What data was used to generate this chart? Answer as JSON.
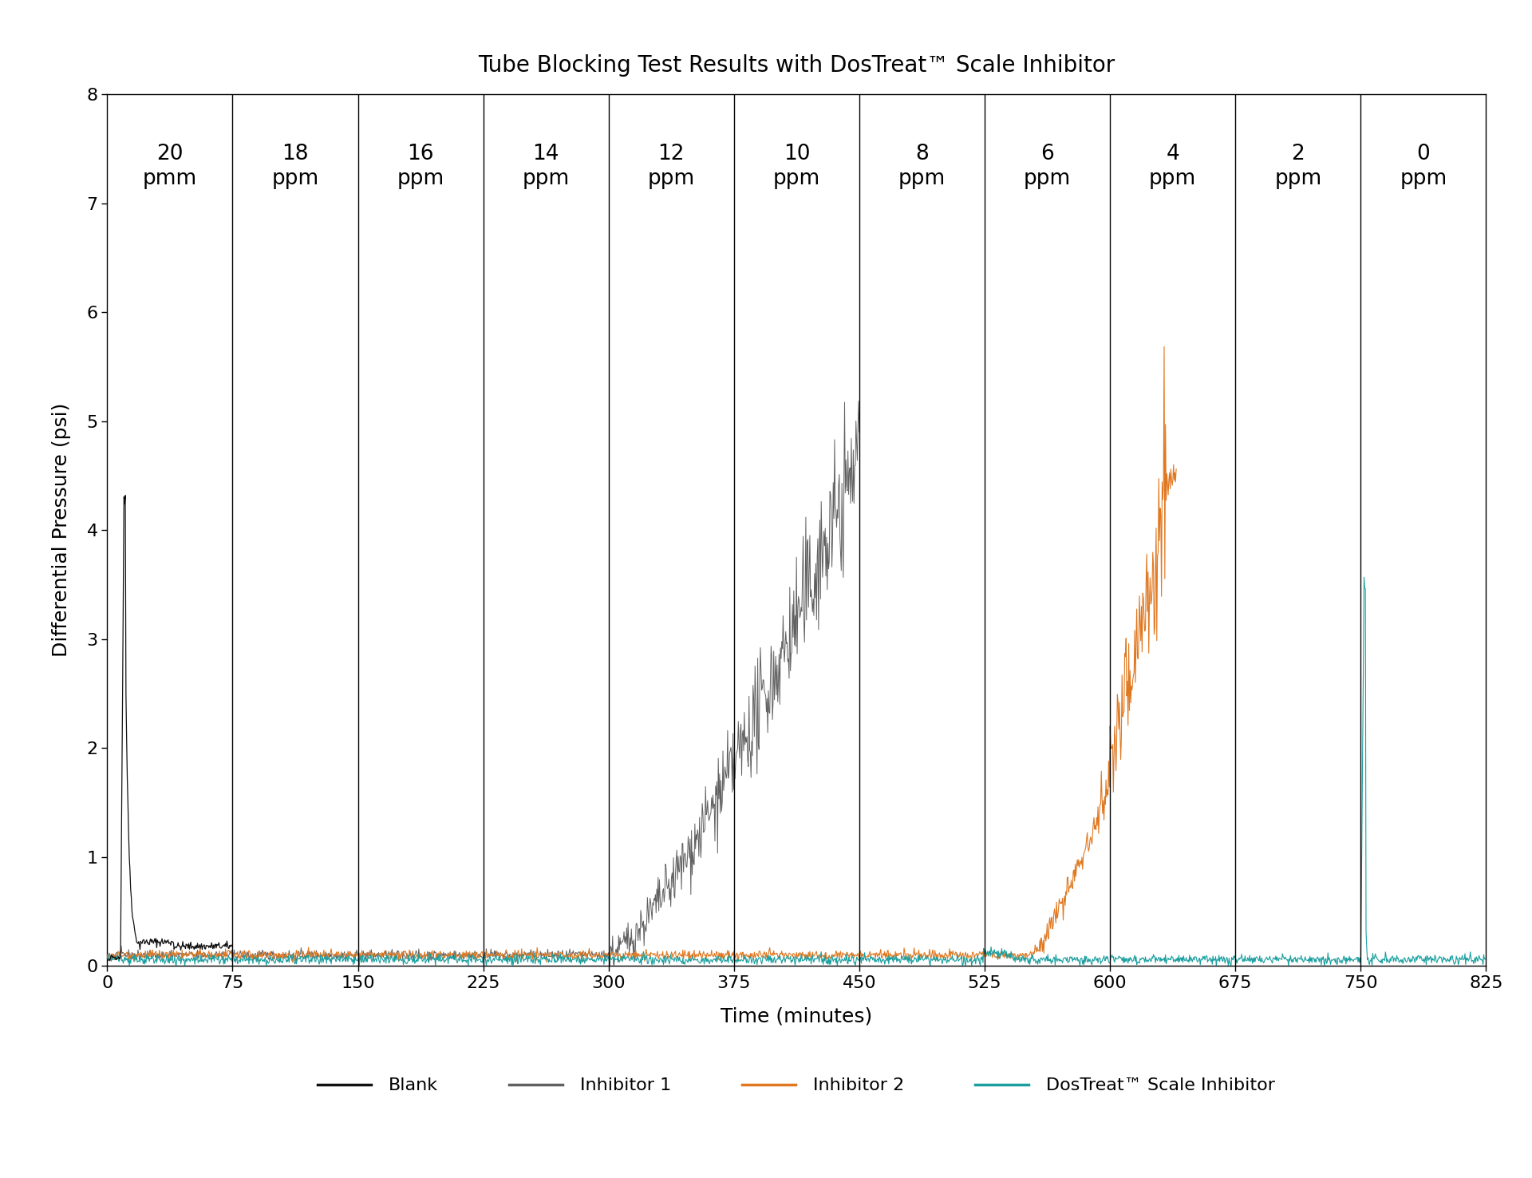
{
  "title": "Tube Blocking Test Results with DosTreat™ Scale Inhibitor",
  "xlabel": "Time (minutes)",
  "ylabel": "Differential Pressure (psi)",
  "xlim": [
    0,
    825
  ],
  "ylim": [
    0,
    8
  ],
  "xticks": [
    0,
    75,
    150,
    225,
    300,
    375,
    450,
    525,
    600,
    675,
    750,
    825
  ],
  "yticks": [
    0,
    1,
    2,
    3,
    4,
    5,
    6,
    7,
    8
  ],
  "background_color": "#ffffff",
  "vlines": [
    75,
    150,
    225,
    300,
    375,
    450,
    525,
    600,
    675,
    750
  ],
  "ppm_labels": [
    {
      "text": "20\npmm",
      "x": 37.5
    },
    {
      "text": "18\nppm",
      "x": 112.5
    },
    {
      "text": "16\nppm",
      "x": 187.5
    },
    {
      "text": "14\nppm",
      "x": 262.5
    },
    {
      "text": "12\nppm",
      "x": 337.5
    },
    {
      "text": "10\nppm",
      "x": 412.5
    },
    {
      "text": "8\nppm",
      "x": 487.5
    },
    {
      "text": "6\nppm",
      "x": 562.5
    },
    {
      "text": "4\nppm",
      "x": 637.5
    },
    {
      "text": "2\nppm",
      "x": 712.5
    },
    {
      "text": "0\nppm",
      "x": 787.5
    }
  ],
  "colors": {
    "blank": "#111111",
    "inhibitor1": "#606060",
    "inhibitor2": "#e07820",
    "dostreat": "#1a9fa0"
  },
  "legend_labels": [
    "Blank",
    "Inhibitor 1",
    "Inhibitor 2",
    "DosTreat™ Scale Inhibitor"
  ],
  "title_fontsize": 20,
  "label_fontsize": 18,
  "tick_fontsize": 16,
  "ppm_fontsize": 19,
  "legend_fontsize": 16
}
